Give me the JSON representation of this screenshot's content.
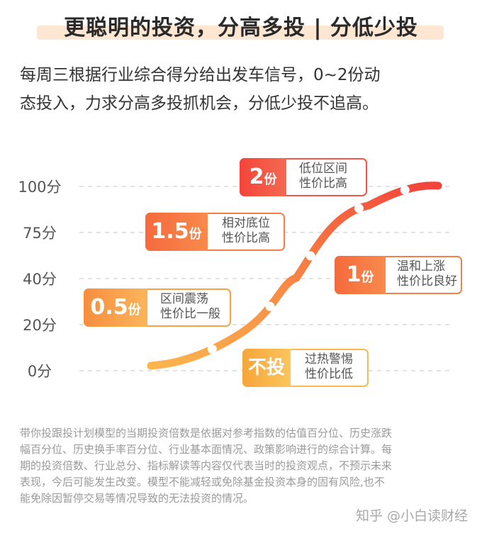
{
  "title": "更聪明的投资，分高多投 | 分低少投",
  "intro_lines": [
    "每周三根据行业综合得分给出发车信号，0~2份动",
    "态投入，力求分高多投抓机会，分低少投不追高。"
  ],
  "chart_data": {
    "type": "line",
    "title": "",
    "xlabel": "",
    "ylabel": "",
    "y_tick_labels": [
      "100分",
      "75分",
      "40分",
      "20分",
      "0分"
    ],
    "grid": "dashed-horizontal",
    "series": [
      {
        "color": "gradient #f9b54d → #f2433b",
        "markers": [
          {
            "category": "不投",
            "score": 10
          },
          {
            "category": "0.5份",
            "score": 30
          },
          {
            "category": "1份",
            "score": 60
          },
          {
            "category": "1.5份",
            "score": 85
          },
          {
            "category": "2份",
            "score": 100
          }
        ]
      }
    ],
    "callouts": [
      {
        "value": "2",
        "unit": "份",
        "lines": [
          "低位区间",
          "性价比高"
        ],
        "color": "#f2554b"
      },
      {
        "value": "1.5",
        "unit": "份",
        "lines": [
          "相对底位",
          "性价比高"
        ],
        "color": "#f77e46"
      },
      {
        "value": "1",
        "unit": "份",
        "lines": [
          "温和上涨",
          "性价比良好"
        ],
        "color": "#f77e46"
      },
      {
        "value": "0.5",
        "unit": "份",
        "lines": [
          "区间震荡",
          "性价比一般"
        ],
        "color": "#f9a04d"
      },
      {
        "value": "不投",
        "unit": "",
        "lines": [
          "过热警惕",
          "性价比低"
        ],
        "color": "#f9b950"
      }
    ]
  },
  "disclaimer_lines": [
    "带你投跟投计划模型的当期投资倍数是依据对参考指数的估值百分位、历史涨跌",
    "幅百分位、历史换手率百分位、行业基本面情况、政策影响进行的综合计算。每",
    "期的投资倍数、行业总分、指标解读等内容仅代表当时的投资观点，不预示未来",
    "表现，今后可能发生改变。模型不能减轻或免除基金投资本身的固有风险,也不",
    "能免除因暂停交易等情况导致的无法投资的情况。"
  ],
  "watermark": "知乎 @小白读财经"
}
